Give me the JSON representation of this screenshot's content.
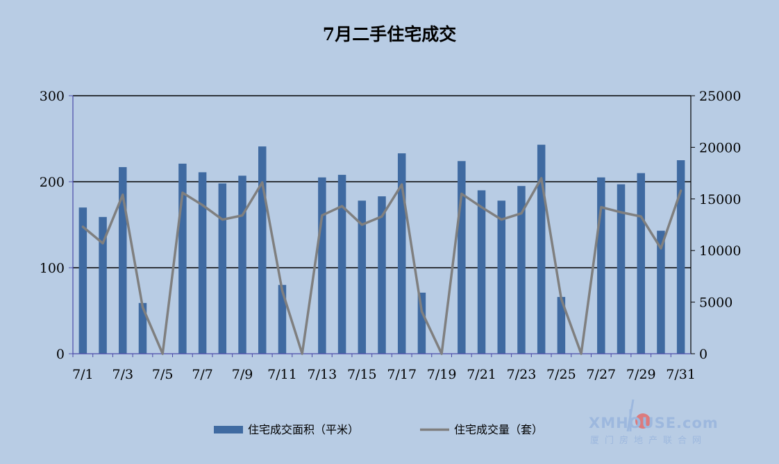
{
  "chart_data": {
    "type": "bar",
    "title": "7月二手住宅成交",
    "categories": [
      "7/1",
      "7/2",
      "7/3",
      "7/4",
      "7/5",
      "7/6",
      "7/7",
      "7/8",
      "7/9",
      "7/10",
      "7/11",
      "7/12",
      "7/13",
      "7/14",
      "7/15",
      "7/16",
      "7/17",
      "7/18",
      "7/19",
      "7/20",
      "7/21",
      "7/22",
      "7/23",
      "7/24",
      "7/25",
      "7/26",
      "7/27",
      "7/28",
      "7/29",
      "7/30",
      "7/31"
    ],
    "x_tick_labels": [
      "7/1",
      "7/3",
      "7/5",
      "7/7",
      "7/9",
      "7/11",
      "7/13",
      "7/15",
      "7/17",
      "7/19",
      "7/21",
      "7/23",
      "7/25",
      "7/27",
      "7/29",
      "7/31"
    ],
    "series": [
      {
        "name": "住宅成交面积（平米）",
        "type": "bar",
        "axis": "left",
        "color": "#3f6aa1",
        "values": [
          170,
          159,
          217,
          59,
          0,
          221,
          211,
          198,
          207,
          241,
          80,
          0,
          205,
          208,
          178,
          183,
          233,
          71,
          0,
          224,
          190,
          178,
          195,
          243,
          66,
          0,
          205,
          197,
          210,
          143,
          225
        ]
      },
      {
        "name": "住宅成交量（套）",
        "type": "line",
        "axis": "right",
        "color": "#7f7f7f",
        "values": [
          12300,
          10700,
          15400,
          4500,
          0,
          15600,
          14400,
          13000,
          13400,
          16600,
          6100,
          0,
          13400,
          14300,
          12500,
          13300,
          16400,
          4100,
          0,
          15500,
          14200,
          13000,
          13600,
          17000,
          5300,
          0,
          14200,
          13700,
          13300,
          10200,
          15800
        ]
      }
    ],
    "y_left": {
      "min": 0,
      "max": 300,
      "ticks": [
        "0",
        "100",
        "200",
        "300"
      ]
    },
    "y_right": {
      "min": 0,
      "max": 25000,
      "ticks": [
        "0",
        "5000",
        "10000",
        "15000",
        "20000",
        "25000"
      ]
    },
    "grid": true,
    "legend_position": "bottom"
  },
  "watermark": {
    "text": "XMHOUSE.com",
    "subtext": "厦门房地产联合网",
    "color": "#9db8de",
    "accent": "#e8605b"
  }
}
